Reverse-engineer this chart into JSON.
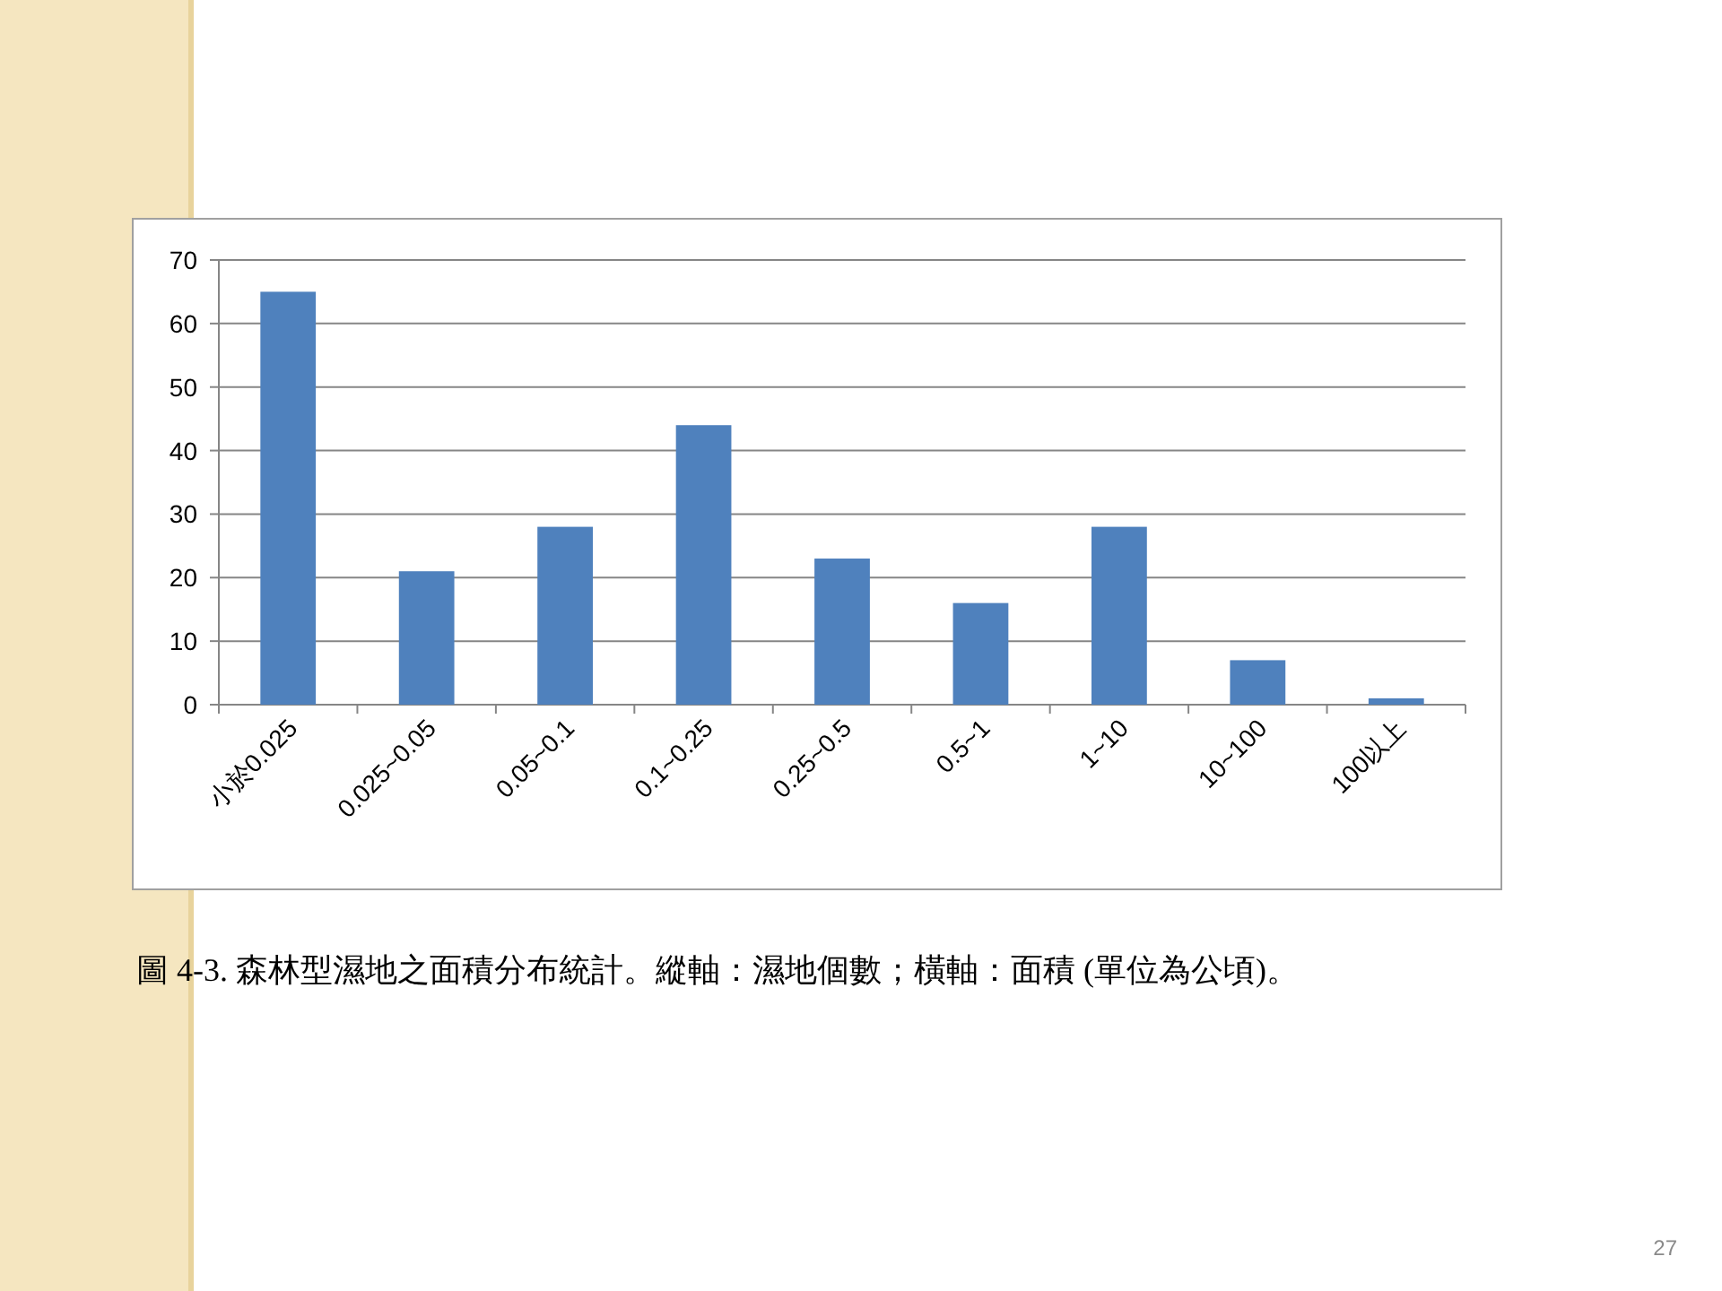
{
  "chart_data": {
    "type": "bar",
    "categories": [
      "小於0.025",
      "0.025~0.05",
      "0.05~0.1",
      "0.1~0.25",
      "0.25~0.5",
      "0.5~1",
      "1~10",
      "10~100",
      "100以上"
    ],
    "values": [
      65,
      21,
      28,
      44,
      23,
      16,
      28,
      7,
      1
    ],
    "color": "#4f81bd",
    "ylim": [
      0,
      70
    ],
    "yticks": [
      0,
      10,
      20,
      30,
      40,
      50,
      60,
      70
    ],
    "grid": "y",
    "annotations": [
      "圖 4-3.  森林型濕地之面積分布統計。縱軸：濕地個數；橫軸：面積 (單位為公頃)。",
      "27"
    ]
  }
}
